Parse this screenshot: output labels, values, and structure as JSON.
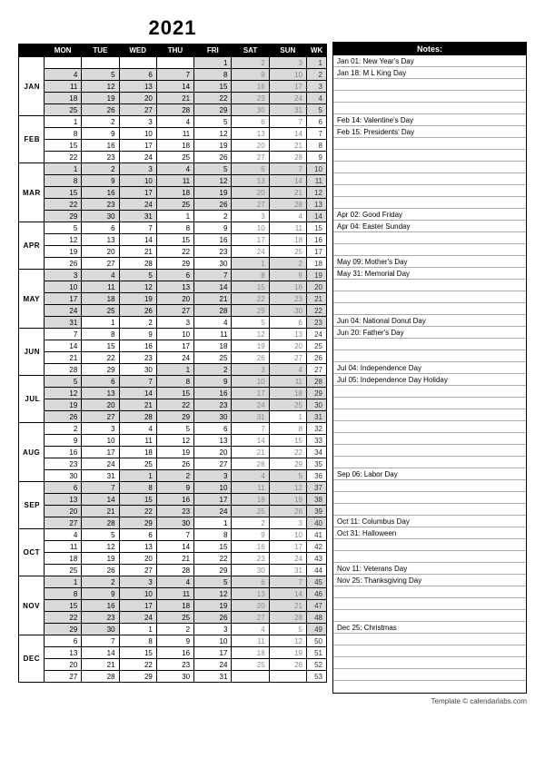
{
  "year": "2021",
  "day_headers": [
    "MON",
    "TUE",
    "WED",
    "THU",
    "FRI",
    "SAT",
    "SUN"
  ],
  "wk_label": "WK",
  "notes_header": "Notes:",
  "footer": "Template © calendarlabs.com",
  "months": [
    {
      "label": "JAN",
      "shaded": true,
      "rows": [
        {
          "days": [
            "",
            "",
            "",
            "",
            "1",
            "2",
            "3"
          ],
          "wk": "1"
        },
        {
          "days": [
            "4",
            "5",
            "6",
            "7",
            "8",
            "9",
            "10"
          ],
          "wk": "2"
        },
        {
          "days": [
            "11",
            "12",
            "13",
            "14",
            "15",
            "16",
            "17"
          ],
          "wk": "3"
        },
        {
          "days": [
            "18",
            "19",
            "20",
            "21",
            "22",
            "23",
            "24"
          ],
          "wk": "4"
        },
        {
          "days": [
            "25",
            "26",
            "27",
            "28",
            "29",
            "30",
            "31"
          ],
          "wk": "5"
        }
      ]
    },
    {
      "label": "FEB",
      "shaded": false,
      "rows": [
        {
          "days": [
            "1",
            "2",
            "3",
            "4",
            "5",
            "6",
            "7"
          ],
          "wk": "6"
        },
        {
          "days": [
            "8",
            "9",
            "10",
            "11",
            "12",
            "13",
            "14"
          ],
          "wk": "7"
        },
        {
          "days": [
            "15",
            "16",
            "17",
            "18",
            "19",
            "20",
            "21"
          ],
          "wk": "8"
        },
        {
          "days": [
            "22",
            "23",
            "24",
            "25",
            "26",
            "27",
            "28"
          ],
          "wk": "9"
        }
      ]
    },
    {
      "label": "MAR",
      "shaded": true,
      "rows": [
        {
          "days": [
            "1",
            "2",
            "3",
            "4",
            "5",
            "6",
            "7"
          ],
          "wk": "10"
        },
        {
          "days": [
            "8",
            "9",
            "10",
            "11",
            "12",
            "13",
            "14"
          ],
          "wk": "11"
        },
        {
          "days": [
            "15",
            "16",
            "17",
            "18",
            "19",
            "20",
            "21"
          ],
          "wk": "12"
        },
        {
          "days": [
            "22",
            "23",
            "24",
            "25",
            "26",
            "27",
            "28"
          ],
          "wk": "13"
        },
        {
          "days": [
            "29",
            "30",
            "31",
            "1",
            "2",
            "3",
            "4"
          ],
          "wk": "14",
          "carry": [
            3,
            4,
            5,
            6
          ]
        }
      ]
    },
    {
      "label": "APR",
      "shaded": false,
      "rows": [
        {
          "days": [
            "5",
            "6",
            "7",
            "8",
            "9",
            "10",
            "11"
          ],
          "wk": "15"
        },
        {
          "days": [
            "12",
            "13",
            "14",
            "15",
            "16",
            "17",
            "18"
          ],
          "wk": "16"
        },
        {
          "days": [
            "19",
            "20",
            "21",
            "22",
            "23",
            "24",
            "25"
          ],
          "wk": "17"
        },
        {
          "days": [
            "26",
            "27",
            "28",
            "29",
            "30",
            "1",
            "2"
          ],
          "wk": "18",
          "carry": [
            5,
            6
          ]
        }
      ]
    },
    {
      "label": "MAY",
      "shaded": true,
      "rows": [
        {
          "days": [
            "3",
            "4",
            "5",
            "6",
            "7",
            "8",
            "9"
          ],
          "wk": "19"
        },
        {
          "days": [
            "10",
            "11",
            "12",
            "13",
            "14",
            "15",
            "16"
          ],
          "wk": "20"
        },
        {
          "days": [
            "17",
            "18",
            "19",
            "20",
            "21",
            "22",
            "23"
          ],
          "wk": "21"
        },
        {
          "days": [
            "24",
            "25",
            "26",
            "27",
            "28",
            "29",
            "30"
          ],
          "wk": "22"
        },
        {
          "days": [
            "31",
            "1",
            "2",
            "3",
            "4",
            "5",
            "6"
          ],
          "wk": "23",
          "carry": [
            1,
            2,
            3,
            4,
            5,
            6
          ]
        }
      ]
    },
    {
      "label": "JUN",
      "shaded": false,
      "rows": [
        {
          "days": [
            "7",
            "8",
            "9",
            "10",
            "11",
            "12",
            "13"
          ],
          "wk": "24"
        },
        {
          "days": [
            "14",
            "15",
            "16",
            "17",
            "18",
            "19",
            "20"
          ],
          "wk": "25"
        },
        {
          "days": [
            "21",
            "22",
            "23",
            "24",
            "25",
            "26",
            "27"
          ],
          "wk": "26"
        },
        {
          "days": [
            "28",
            "29",
            "30",
            "1",
            "2",
            "3",
            "4"
          ],
          "wk": "27",
          "carry": [
            3,
            4,
            5,
            6
          ]
        }
      ]
    },
    {
      "label": "JUL",
      "shaded": true,
      "rows": [
        {
          "days": [
            "5",
            "6",
            "7",
            "8",
            "9",
            "10",
            "11"
          ],
          "wk": "28"
        },
        {
          "days": [
            "12",
            "13",
            "14",
            "15",
            "16",
            "17",
            "18"
          ],
          "wk": "29"
        },
        {
          "days": [
            "19",
            "20",
            "21",
            "22",
            "23",
            "24",
            "25"
          ],
          "wk": "30"
        },
        {
          "days": [
            "26",
            "27",
            "28",
            "29",
            "30",
            "31",
            "1"
          ],
          "wk": "31",
          "carry": [
            6
          ]
        }
      ]
    },
    {
      "label": "AUG",
      "shaded": false,
      "rows": [
        {
          "days": [
            "2",
            "3",
            "4",
            "5",
            "6",
            "7",
            "8"
          ],
          "wk": "32"
        },
        {
          "days": [
            "9",
            "10",
            "11",
            "12",
            "13",
            "14",
            "15"
          ],
          "wk": "33"
        },
        {
          "days": [
            "16",
            "17",
            "18",
            "19",
            "20",
            "21",
            "22"
          ],
          "wk": "34"
        },
        {
          "days": [
            "23",
            "24",
            "25",
            "26",
            "27",
            "28",
            "29"
          ],
          "wk": "35"
        },
        {
          "days": [
            "30",
            "31",
            "1",
            "2",
            "3",
            "4",
            "5"
          ],
          "wk": "36",
          "carry": [
            2,
            3,
            4,
            5,
            6
          ]
        }
      ]
    },
    {
      "label": "SEP",
      "shaded": true,
      "rows": [
        {
          "days": [
            "6",
            "7",
            "8",
            "9",
            "10",
            "11",
            "12"
          ],
          "wk": "37"
        },
        {
          "days": [
            "13",
            "14",
            "15",
            "16",
            "17",
            "18",
            "19"
          ],
          "wk": "38"
        },
        {
          "days": [
            "20",
            "21",
            "22",
            "23",
            "24",
            "25",
            "26"
          ],
          "wk": "39"
        },
        {
          "days": [
            "27",
            "28",
            "29",
            "30",
            "1",
            "2",
            "3"
          ],
          "wk": "40",
          "carry": [
            4,
            5,
            6
          ]
        }
      ]
    },
    {
      "label": "OCT",
      "shaded": false,
      "rows": [
        {
          "days": [
            "4",
            "5",
            "6",
            "7",
            "8",
            "9",
            "10"
          ],
          "wk": "41"
        },
        {
          "days": [
            "11",
            "12",
            "13",
            "14",
            "15",
            "16",
            "17"
          ],
          "wk": "42"
        },
        {
          "days": [
            "18",
            "19",
            "20",
            "21",
            "22",
            "23",
            "24"
          ],
          "wk": "43"
        },
        {
          "days": [
            "25",
            "26",
            "27",
            "28",
            "29",
            "30",
            "31"
          ],
          "wk": "44"
        }
      ]
    },
    {
      "label": "NOV",
      "shaded": true,
      "rows": [
        {
          "days": [
            "1",
            "2",
            "3",
            "4",
            "5",
            "6",
            "7"
          ],
          "wk": "45"
        },
        {
          "days": [
            "8",
            "9",
            "10",
            "11",
            "12",
            "13",
            "14"
          ],
          "wk": "46"
        },
        {
          "days": [
            "15",
            "16",
            "17",
            "18",
            "19",
            "20",
            "21"
          ],
          "wk": "47"
        },
        {
          "days": [
            "22",
            "23",
            "24",
            "25",
            "26",
            "27",
            "28"
          ],
          "wk": "48"
        },
        {
          "days": [
            "29",
            "30",
            "1",
            "2",
            "3",
            "4",
            "5"
          ],
          "wk": "49",
          "carry": [
            2,
            3,
            4,
            5,
            6
          ]
        }
      ]
    },
    {
      "label": "DEC",
      "shaded": false,
      "rows": [
        {
          "days": [
            "6",
            "7",
            "8",
            "9",
            "10",
            "11",
            "12"
          ],
          "wk": "50"
        },
        {
          "days": [
            "13",
            "14",
            "15",
            "16",
            "17",
            "18",
            "19"
          ],
          "wk": "51"
        },
        {
          "days": [
            "20",
            "21",
            "22",
            "23",
            "24",
            "25",
            "26"
          ],
          "wk": "52"
        },
        {
          "days": [
            "27",
            "28",
            "29",
            "30",
            "31",
            "",
            ""
          ],
          "wk": "53"
        }
      ]
    }
  ],
  "notes_total_lines": 54,
  "notes": {
    "0": "Jan 01: New Year's Day",
    "1": "Jan 18: M L King Day",
    "5": "Feb 14: Valentine's Day",
    "6": "Feb 15: Presidents' Day",
    "13": "Apr 02: Good Friday",
    "14": "Apr 04: Easter Sunday",
    "17": "May 09: Mother's Day",
    "18": "May 31: Memorial Day",
    "22": "Jun 04: National Donut Day",
    "23": "Jun 20: Father's Day",
    "26": "Jul 04: Independence Day",
    "27": "Jul 05: Independence Day Holiday",
    "35": "Sep 06: Labor Day",
    "39": "Oct 11: Columbus Day",
    "40": "Oct 31: Halloween",
    "43": "Nov 11: Veterans Day",
    "44": "Nov 25: Thanksgiving Day",
    "48": "Dec 25: Christmas"
  },
  "colors": {
    "header_bg": "#000000",
    "header_fg": "#ffffff",
    "shade": "#d9d9d9",
    "weekend_text": "#888888",
    "note_rule": "#aaaaaa"
  }
}
